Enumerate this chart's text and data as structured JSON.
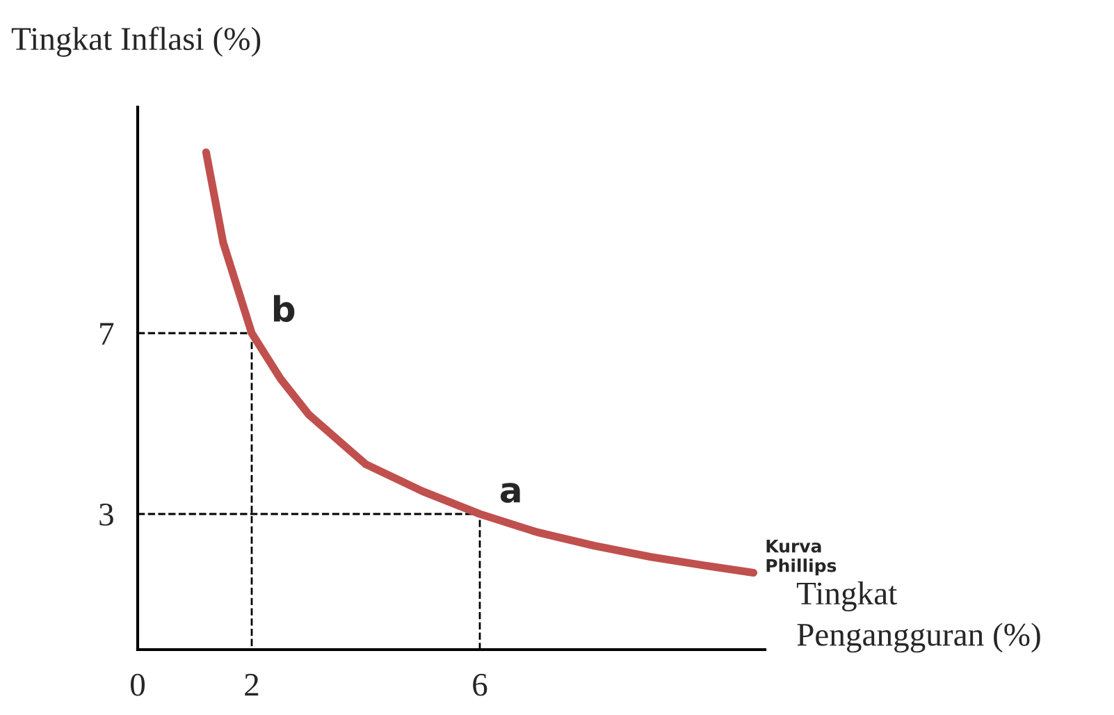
{
  "chart_data": {
    "type": "line",
    "xlabel": "Tingkat\nPengangguran (%)",
    "ylabel": "Tingkat Inflasi (%)",
    "xlim": [
      0,
      11
    ],
    "ylim": [
      0,
      12
    ],
    "xticks": [
      0,
      2,
      6
    ],
    "yticks": [
      3,
      7
    ],
    "grid": false,
    "legend": false,
    "series": [
      {
        "color": "#c0504d",
        "x": [
          1.2,
          1.5,
          2,
          2.5,
          3,
          4,
          5,
          6,
          7,
          8,
          9,
          10,
          10.8
        ],
        "values": [
          11,
          9.0,
          7,
          6.0,
          5.2,
          4.1,
          3.5,
          3,
          2.6,
          2.3,
          2.05,
          1.85,
          1.7
        ]
      },
      {
        "color": "#000000",
        "line_style": "dashed",
        "x": [
          0,
          2,
          2
        ],
        "values": [
          7,
          7,
          0
        ]
      },
      {
        "color": "#000000",
        "line_style": "dashed",
        "x": [
          0,
          6,
          6
        ],
        "values": [
          3,
          3,
          0
        ]
      }
    ],
    "annotations": [
      {
        "text": "b",
        "x": 2,
        "y": 7
      },
      {
        "text": "a",
        "x": 6,
        "y": 3
      },
      {
        "text": "Kurva\nPhillips",
        "x": 10.8,
        "y": 1.7
      }
    ]
  }
}
